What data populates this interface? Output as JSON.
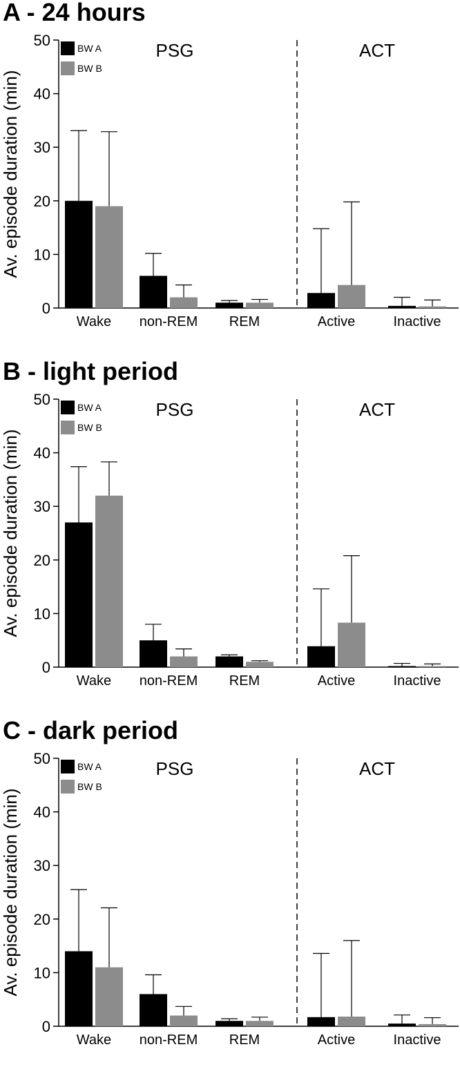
{
  "colors": {
    "bw_a": "#000000",
    "bw_b": "#8c8c8c",
    "axis": "#000000"
  },
  "chart_data": [
    {
      "type": "bar",
      "title": "A - 24 hours",
      "ylabel": "Av. episode duration (min)",
      "xlabel": "",
      "ylim": [
        0,
        50
      ],
      "yticks": [
        0,
        10,
        20,
        30,
        40,
        50
      ],
      "grid": false,
      "legend": "top-left",
      "group_labels": [
        "PSG",
        "ACT"
      ],
      "categories": [
        "Wake",
        "non-REM",
        "REM",
        "Active",
        "Inactive"
      ],
      "series": [
        {
          "name": "BW A",
          "values": [
            20,
            6,
            1,
            2.8,
            0.4
          ],
          "error_upper": [
            33.1,
            10.2,
            1.4,
            14.8,
            2.0
          ]
        },
        {
          "name": "BW B",
          "values": [
            19,
            2,
            1,
            4.3,
            0.3
          ],
          "error_upper": [
            32.9,
            4.3,
            1.6,
            19.8,
            1.5
          ]
        }
      ]
    },
    {
      "type": "bar",
      "title": "B - light period",
      "ylabel": "Av. episode duration (min)",
      "xlabel": "",
      "ylim": [
        0,
        50
      ],
      "yticks": [
        0,
        10,
        20,
        30,
        40,
        50
      ],
      "grid": false,
      "legend": "top-left",
      "group_labels": [
        "PSG",
        "ACT"
      ],
      "categories": [
        "Wake",
        "non-REM",
        "REM",
        "Active",
        "Inactive"
      ],
      "series": [
        {
          "name": "BW A",
          "values": [
            27,
            5,
            2,
            3.9,
            0.2
          ],
          "error_upper": [
            37.4,
            8.0,
            2.3,
            14.6,
            0.7
          ]
        },
        {
          "name": "BW B",
          "values": [
            32,
            2,
            1,
            8.3,
            0.2
          ],
          "error_upper": [
            38.3,
            3.4,
            1.2,
            20.8,
            0.6
          ]
        }
      ]
    },
    {
      "type": "bar",
      "title": "C - dark period",
      "ylabel": "Av. episode duration (min)",
      "xlabel": "",
      "ylim": [
        0,
        50
      ],
      "yticks": [
        0,
        10,
        20,
        30,
        40,
        50
      ],
      "grid": false,
      "legend": "top-left",
      "group_labels": [
        "PSG",
        "ACT"
      ],
      "categories": [
        "Wake",
        "non-REM",
        "REM",
        "Active",
        "Inactive"
      ],
      "series": [
        {
          "name": "BW A",
          "values": [
            14,
            6,
            1,
            1.7,
            0.5
          ],
          "error_upper": [
            25.5,
            9.6,
            1.4,
            13.6,
            2.1
          ]
        },
        {
          "name": "BW B",
          "values": [
            11,
            2,
            1,
            1.8,
            0.4
          ],
          "error_upper": [
            22.1,
            3.7,
            1.7,
            16.0,
            1.6
          ]
        }
      ]
    }
  ]
}
